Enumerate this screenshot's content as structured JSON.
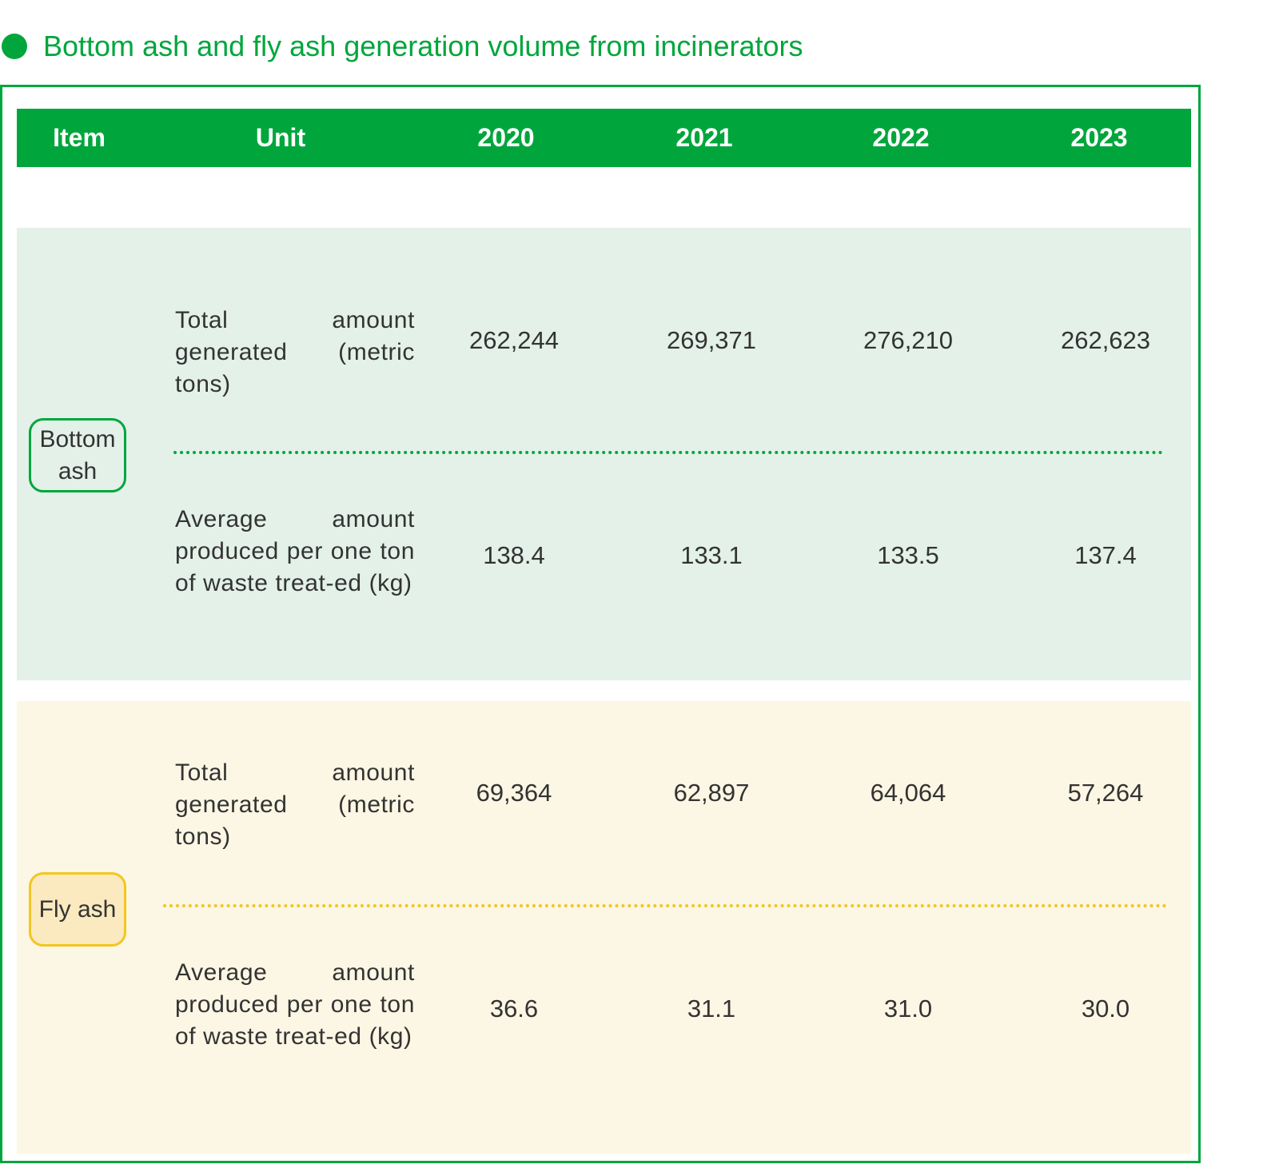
{
  "title": "Bottom ash and fly ash generation volume from incinerators",
  "colors": {
    "accent": "#00a63c",
    "bottom_ash_bg": "#e3f1e9",
    "fly_ash_bg": "#fcf6e4",
    "fly_ash_border": "#f2c61f"
  },
  "table": {
    "headers": [
      "Item",
      "Unit",
      "2020",
      "2021",
      "2022",
      "2023"
    ],
    "sections": [
      {
        "item": "Bottom ash",
        "rows": [
          {
            "unit": "Total amount generated (metric tons)",
            "values": [
              "262,244",
              "269,371",
              "276,210",
              "262,623"
            ]
          },
          {
            "unit": "Average amount produced per one ton of waste treat-ed (kg)",
            "values": [
              "138.4",
              "133.1",
              "133.5",
              "137.4"
            ]
          }
        ]
      },
      {
        "item": "Fly ash",
        "rows": [
          {
            "unit": "Total amount generated (metric tons)",
            "values": [
              "69,364",
              "62,897",
              "64,064",
              "57,264"
            ]
          },
          {
            "unit": "Average amount produced per one ton of waste treat-ed (kg)",
            "values": [
              "36.6",
              "31.1",
              "31.0",
              "30.0"
            ]
          }
        ]
      }
    ]
  }
}
